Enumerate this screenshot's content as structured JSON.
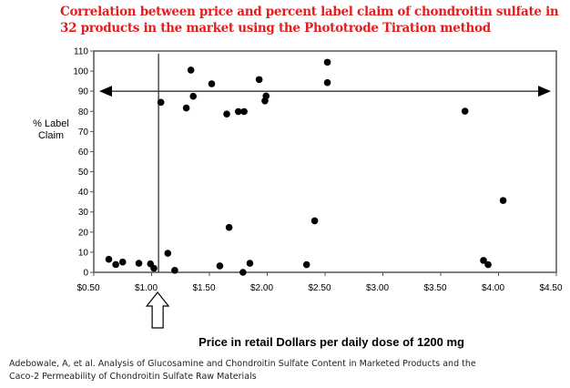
{
  "title": "Correlation between price and percent label claim of chondroitin sulfate in 32 products in the market using the Phototrode Tiration method",
  "citation": "Adebowale, A, et al. Analysis of Glucosamine and Chondroitin Sulfate Content in  Marketed Products and  the Caco-2 Permeability of Chondroitin Sulfate Raw Materials",
  "chart_data": {
    "type": "scatter",
    "title": "Correlation between price and percent label claim of chondroitin sulfate in 32 products in the market using the Phototrode Tiration method",
    "xlabel": "Price in retail Dollars per daily dose of 1200 mg",
    "ylabel": "% Label Claim",
    "xlim": [
      0.5,
      4.5
    ],
    "ylim": [
      0,
      110
    ],
    "xticks": [
      0.5,
      1.0,
      1.5,
      2.0,
      2.5,
      3.0,
      3.5,
      4.0,
      4.5
    ],
    "xtick_labels": [
      "$0.50",
      "$1.00",
      "$1.50",
      "$2.00",
      "$2.50",
      "$3.00",
      "$3.50",
      "$4.00",
      "$4.50"
    ],
    "yticks": [
      0,
      10,
      20,
      30,
      40,
      50,
      60,
      70,
      80,
      90,
      100,
      110
    ],
    "ytick_labels": [
      "0",
      "10",
      "20",
      "30",
      "40",
      "50",
      "60",
      "70",
      "80",
      "90",
      "100",
      "110"
    ],
    "grid": false,
    "point_color": "#000000",
    "points": [
      [
        0.63,
        6.5
      ],
      [
        0.69,
        3.9
      ],
      [
        0.75,
        5.1
      ],
      [
        0.89,
        4.5
      ],
      [
        0.99,
        4.2
      ],
      [
        1.02,
        2.0
      ],
      [
        1.08,
        84.5
      ],
      [
        1.14,
        9.5
      ],
      [
        1.2,
        1.0
      ],
      [
        1.3,
        81.7
      ],
      [
        1.34,
        100.5
      ],
      [
        1.36,
        87.5
      ],
      [
        1.52,
        93.7
      ],
      [
        1.59,
        3.2
      ],
      [
        1.65,
        78.7
      ],
      [
        1.67,
        22.3
      ],
      [
        1.75,
        79.9
      ],
      [
        1.8,
        79.9
      ],
      [
        1.79,
        0.0
      ],
      [
        1.85,
        4.5
      ],
      [
        1.93,
        95.8
      ],
      [
        1.99,
        87.6
      ],
      [
        1.98,
        85.2
      ],
      [
        2.34,
        3.8
      ],
      [
        2.41,
        25.6
      ],
      [
        2.52,
        104.4
      ],
      [
        2.52,
        94.3
      ],
      [
        3.71,
        80.1
      ],
      [
        4.04,
        35.7
      ],
      [
        3.87,
        5.9
      ],
      [
        3.91,
        3.8
      ]
    ],
    "annotations": {
      "vertical_line_x": 1.06,
      "horizontal_double_arrow_y": 90,
      "up_arrow_below_axis_at_x": 1.06
    }
  }
}
